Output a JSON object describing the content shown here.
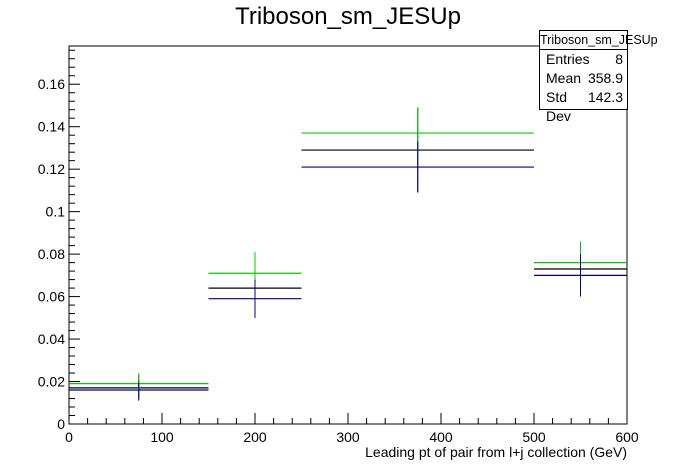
{
  "chart_data": {
    "type": "histogram",
    "title": "Triboson_sm_JESUp",
    "xlabel": "Leading pt of pair from l+j collection (GeV)",
    "ylabel": "",
    "xlim": [
      0,
      600
    ],
    "ylim": [
      0,
      0.178
    ],
    "x_ticks": [
      0,
      100,
      200,
      300,
      400,
      500,
      600
    ],
    "y_ticks": [
      0,
      0.02,
      0.04,
      0.06,
      0.08,
      0.1,
      0.12,
      0.14,
      0.16
    ],
    "bin_edges": [
      0,
      150,
      250,
      500,
      600
    ],
    "series": [
      {
        "color": "#000000",
        "values": [
          0.017,
          0.064,
          0.129,
          0.073
        ],
        "errors": [
          0.006,
          0.013,
          0.02,
          0.012
        ]
      },
      {
        "color": "#00cc00",
        "values": [
          0.019,
          0.071,
          0.137,
          0.076
        ],
        "errors": [
          0.005,
          0.01,
          0.012,
          0.01
        ]
      },
      {
        "color": "#00008b",
        "values": [
          0.016,
          0.059,
          0.121,
          0.07
        ],
        "errors": [
          0.004,
          0.009,
          0.012,
          0.01
        ]
      }
    ],
    "stats": {
      "name": "Triboson_sm_JESUp",
      "rows": [
        {
          "label": "Entries",
          "value": "8"
        },
        {
          "label": "Mean",
          "value": "358.9"
        },
        {
          "label": "Std Dev",
          "value": "142.3"
        }
      ]
    }
  }
}
